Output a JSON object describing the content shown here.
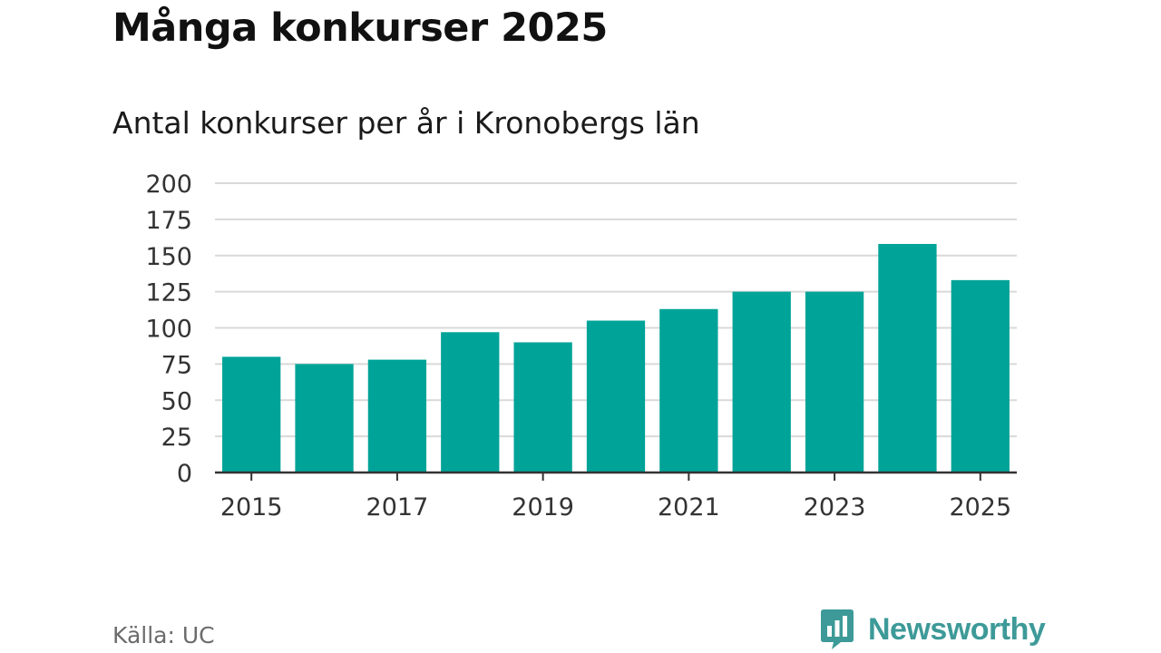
{
  "title": "Många konkurser 2025",
  "subtitle": "Antal konkurser per år i Kronobergs län",
  "source": "Källa: UC",
  "brand": {
    "name": "Newsworthy",
    "color": "#3d9a98",
    "icon": "bar-chart-speech-bubble-icon"
  },
  "colors": {
    "bar": "#00a398",
    "grid": "#d9d9d9",
    "axis": "#333333",
    "tick_text": "#333333"
  },
  "chart_data": {
    "type": "bar",
    "title": "Många konkurser 2025",
    "subtitle": "Antal konkurser per år i Kronobergs län",
    "xlabel": "",
    "ylabel": "",
    "categories": [
      "2015",
      "2016",
      "2017",
      "2018",
      "2019",
      "2020",
      "2021",
      "2022",
      "2023",
      "2024",
      "2025"
    ],
    "values": [
      80,
      75,
      78,
      97,
      90,
      105,
      113,
      125,
      125,
      158,
      133
    ],
    "x_tick_labels": [
      "2015",
      "2017",
      "2019",
      "2021",
      "2023",
      "2025"
    ],
    "y_ticks": [
      0,
      25,
      50,
      75,
      100,
      125,
      150,
      175,
      200
    ],
    "ylim": [
      0,
      200
    ],
    "grid": true,
    "legend": "none"
  }
}
